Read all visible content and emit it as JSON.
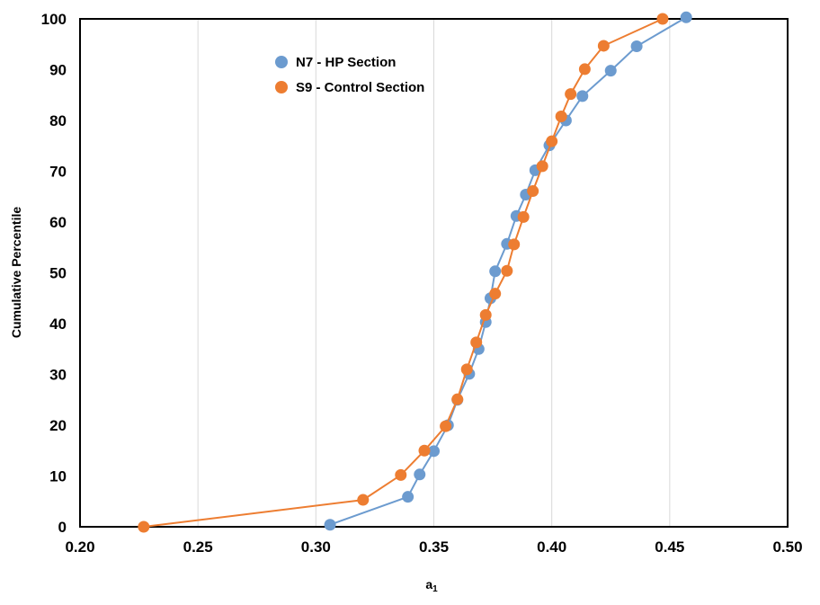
{
  "chart_data": {
    "type": "line",
    "title": "",
    "xlabel": "a",
    "xlabel_subscript": "1",
    "ylabel": "Cumulative Percentile",
    "xlim": [
      0.2,
      0.5
    ],
    "ylim": [
      0,
      100
    ],
    "x_ticks": [
      {
        "value": 0.2,
        "label": "0.20"
      },
      {
        "value": 0.25,
        "label": "0.25"
      },
      {
        "value": 0.3,
        "label": "0.30"
      },
      {
        "value": 0.35,
        "label": "0.35"
      },
      {
        "value": 0.4,
        "label": "0.40"
      },
      {
        "value": 0.45,
        "label": "0.45"
      },
      {
        "value": 0.5,
        "label": "0.50"
      }
    ],
    "y_ticks": [
      {
        "value": 0,
        "label": "0"
      },
      {
        "value": 10,
        "label": "10"
      },
      {
        "value": 20,
        "label": "20"
      },
      {
        "value": 30,
        "label": "30"
      },
      {
        "value": 40,
        "label": "40"
      },
      {
        "value": 50,
        "label": "50"
      },
      {
        "value": 60,
        "label": "60"
      },
      {
        "value": 70,
        "label": "70"
      },
      {
        "value": 80,
        "label": "80"
      },
      {
        "value": 90,
        "label": "90"
      },
      {
        "value": 100,
        "label": "100"
      }
    ],
    "grid": {
      "vertical": true,
      "horizontal": false
    },
    "legend_position": "top-left",
    "series": [
      {
        "name": "N7 - HP Section",
        "color": "#6C9BCF",
        "points": [
          {
            "x": 0.306,
            "y": 0.4
          },
          {
            "x": 0.339,
            "y": 5.9
          },
          {
            "x": 0.344,
            "y": 10.3
          },
          {
            "x": 0.35,
            "y": 14.9
          },
          {
            "x": 0.356,
            "y": 20.0
          },
          {
            "x": 0.36,
            "y": 25.0
          },
          {
            "x": 0.365,
            "y": 30.1
          },
          {
            "x": 0.369,
            "y": 35.0
          },
          {
            "x": 0.372,
            "y": 40.3
          },
          {
            "x": 0.374,
            "y": 45.0
          },
          {
            "x": 0.376,
            "y": 50.3
          },
          {
            "x": 0.381,
            "y": 55.7
          },
          {
            "x": 0.385,
            "y": 61.2
          },
          {
            "x": 0.389,
            "y": 65.4
          },
          {
            "x": 0.393,
            "y": 70.2
          },
          {
            "x": 0.399,
            "y": 75.1
          },
          {
            "x": 0.406,
            "y": 80.0
          },
          {
            "x": 0.413,
            "y": 84.8
          },
          {
            "x": 0.425,
            "y": 89.8
          },
          {
            "x": 0.436,
            "y": 94.6
          },
          {
            "x": 0.457,
            "y": 100.3
          }
        ]
      },
      {
        "name": "S9 - Control Section",
        "color": "#ED7D31",
        "points": [
          {
            "x": 0.227,
            "y": 0.0
          },
          {
            "x": 0.32,
            "y": 5.3
          },
          {
            "x": 0.336,
            "y": 10.2
          },
          {
            "x": 0.346,
            "y": 15.0
          },
          {
            "x": 0.355,
            "y": 19.8
          },
          {
            "x": 0.36,
            "y": 25.1
          },
          {
            "x": 0.364,
            "y": 31.0
          },
          {
            "x": 0.368,
            "y": 36.3
          },
          {
            "x": 0.372,
            "y": 41.7
          },
          {
            "x": 0.376,
            "y": 45.9
          },
          {
            "x": 0.381,
            "y": 50.4
          },
          {
            "x": 0.384,
            "y": 55.6
          },
          {
            "x": 0.388,
            "y": 61.0
          },
          {
            "x": 0.392,
            "y": 66.1
          },
          {
            "x": 0.396,
            "y": 71.0
          },
          {
            "x": 0.4,
            "y": 75.9
          },
          {
            "x": 0.404,
            "y": 80.8
          },
          {
            "x": 0.408,
            "y": 85.2
          },
          {
            "x": 0.414,
            "y": 90.1
          },
          {
            "x": 0.422,
            "y": 94.7
          },
          {
            "x": 0.447,
            "y": 100.0
          }
        ]
      }
    ]
  }
}
